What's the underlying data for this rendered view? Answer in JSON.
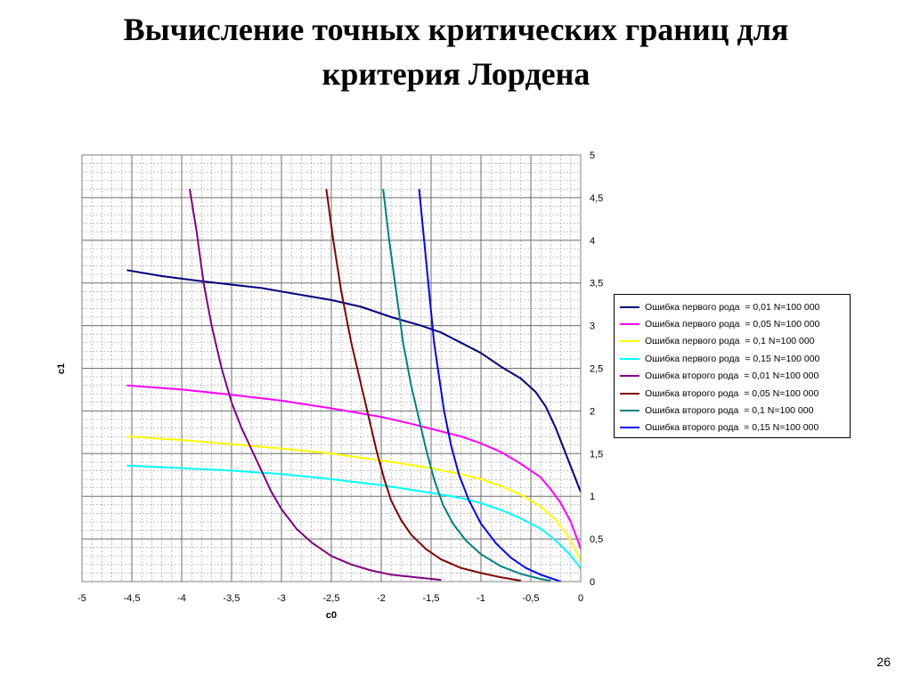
{
  "slide": {
    "title_line1": "Вычисление точных критических границ для",
    "title_line2": "критерия Лордена",
    "page_number": "26"
  },
  "chart_data": {
    "type": "line",
    "xlabel": "c0",
    "ylabel": "c1",
    "xlim": [
      -5,
      0
    ],
    "ylim": [
      0,
      5
    ],
    "x_ticks": [
      "-5",
      "-4,5",
      "-4",
      "-3,5",
      "-3",
      "-2,5",
      "-2",
      "-1,5",
      "-1",
      "-0,5",
      "0"
    ],
    "y_ticks": [
      "0",
      "0,5",
      "1",
      "1,5",
      "2",
      "2,5",
      "3",
      "3,5",
      "4",
      "4,5",
      "5"
    ],
    "grid": true,
    "minor_grid": true,
    "legend_position": "right",
    "series": [
      {
        "name": "Ошибка первого рода  = 0,01 N=100 000",
        "color": "#000080",
        "points": [
          [
            -4.55,
            3.65
          ],
          [
            -4.2,
            3.58
          ],
          [
            -3.8,
            3.52
          ],
          [
            -3.5,
            3.48
          ],
          [
            -3.2,
            3.44
          ],
          [
            -3.0,
            3.4
          ],
          [
            -2.8,
            3.36
          ],
          [
            -2.5,
            3.3
          ],
          [
            -2.2,
            3.22
          ],
          [
            -1.9,
            3.1
          ],
          [
            -1.6,
            3.0
          ],
          [
            -1.4,
            2.92
          ],
          [
            -1.2,
            2.8
          ],
          [
            -1.0,
            2.68
          ],
          [
            -0.8,
            2.52
          ],
          [
            -0.6,
            2.38
          ],
          [
            -0.45,
            2.22
          ],
          [
            -0.35,
            2.05
          ],
          [
            -0.25,
            1.8
          ],
          [
            -0.15,
            1.5
          ],
          [
            -0.05,
            1.2
          ],
          [
            0.0,
            1.05
          ]
        ]
      },
      {
        "name": "Ошибка первого рода  = 0,05 N=100 000",
        "color": "#ff00ff",
        "points": [
          [
            -4.55,
            2.3
          ],
          [
            -4.0,
            2.25
          ],
          [
            -3.5,
            2.19
          ],
          [
            -3.0,
            2.12
          ],
          [
            -2.5,
            2.03
          ],
          [
            -2.0,
            1.93
          ],
          [
            -1.7,
            1.85
          ],
          [
            -1.5,
            1.79
          ],
          [
            -1.2,
            1.7
          ],
          [
            -1.0,
            1.62
          ],
          [
            -0.8,
            1.52
          ],
          [
            -0.6,
            1.38
          ],
          [
            -0.4,
            1.22
          ],
          [
            -0.3,
            1.08
          ],
          [
            -0.2,
            0.92
          ],
          [
            -0.1,
            0.7
          ],
          [
            -0.02,
            0.45
          ],
          [
            0.0,
            0.38
          ]
        ]
      },
      {
        "name": "Ошибка первого рода  = 0,1 N=100 000",
        "color": "#ffff00",
        "points": [
          [
            -4.55,
            1.7
          ],
          [
            -4.0,
            1.66
          ],
          [
            -3.5,
            1.61
          ],
          [
            -3.0,
            1.56
          ],
          [
            -2.5,
            1.5
          ],
          [
            -2.0,
            1.42
          ],
          [
            -1.5,
            1.33
          ],
          [
            -1.2,
            1.26
          ],
          [
            -1.0,
            1.2
          ],
          [
            -0.8,
            1.12
          ],
          [
            -0.6,
            1.02
          ],
          [
            -0.4,
            0.88
          ],
          [
            -0.25,
            0.72
          ],
          [
            -0.12,
            0.52
          ],
          [
            -0.03,
            0.32
          ],
          [
            0.0,
            0.25
          ]
        ]
      },
      {
        "name": "Ошибка первого рода  = 0,15 N=100 000",
        "color": "#00ffff",
        "points": [
          [
            -4.55,
            1.36
          ],
          [
            -4.0,
            1.33
          ],
          [
            -3.5,
            1.3
          ],
          [
            -3.0,
            1.26
          ],
          [
            -2.5,
            1.2
          ],
          [
            -2.0,
            1.13
          ],
          [
            -1.5,
            1.04
          ],
          [
            -1.2,
            0.98
          ],
          [
            -1.0,
            0.92
          ],
          [
            -0.8,
            0.84
          ],
          [
            -0.6,
            0.74
          ],
          [
            -0.4,
            0.62
          ],
          [
            -0.25,
            0.48
          ],
          [
            -0.12,
            0.33
          ],
          [
            -0.03,
            0.2
          ],
          [
            0.0,
            0.15
          ]
        ]
      },
      {
        "name": "Ошибка второго рода  = 0,01 N=100 000",
        "color": "#800080",
        "points": [
          [
            -3.92,
            4.6
          ],
          [
            -3.85,
            4.1
          ],
          [
            -3.78,
            3.5
          ],
          [
            -3.7,
            3.0
          ],
          [
            -3.6,
            2.5
          ],
          [
            -3.5,
            2.1
          ],
          [
            -3.4,
            1.8
          ],
          [
            -3.3,
            1.55
          ],
          [
            -3.2,
            1.3
          ],
          [
            -3.1,
            1.05
          ],
          [
            -3.0,
            0.85
          ],
          [
            -2.85,
            0.62
          ],
          [
            -2.7,
            0.46
          ],
          [
            -2.5,
            0.3
          ],
          [
            -2.3,
            0.2
          ],
          [
            -2.1,
            0.13
          ],
          [
            -1.9,
            0.08
          ],
          [
            -1.65,
            0.05
          ],
          [
            -1.4,
            0.02
          ]
        ]
      },
      {
        "name": "Ошибка второго рода  = 0,05 N=100 000",
        "color": "#800000",
        "points": [
          [
            -2.55,
            4.6
          ],
          [
            -2.48,
            4.0
          ],
          [
            -2.4,
            3.4
          ],
          [
            -2.3,
            2.8
          ],
          [
            -2.2,
            2.3
          ],
          [
            -2.12,
            1.9
          ],
          [
            -2.05,
            1.55
          ],
          [
            -1.97,
            1.2
          ],
          [
            -1.9,
            0.95
          ],
          [
            -1.8,
            0.72
          ],
          [
            -1.7,
            0.55
          ],
          [
            -1.55,
            0.38
          ],
          [
            -1.4,
            0.26
          ],
          [
            -1.2,
            0.16
          ],
          [
            -1.0,
            0.1
          ],
          [
            -0.8,
            0.05
          ],
          [
            -0.6,
            0.01
          ]
        ]
      },
      {
        "name": "Ошибка второго рода  = 0,1 N=100 000",
        "color": "#008080",
        "points": [
          [
            -1.98,
            4.6
          ],
          [
            -1.92,
            4.0
          ],
          [
            -1.85,
            3.4
          ],
          [
            -1.78,
            2.8
          ],
          [
            -1.7,
            2.3
          ],
          [
            -1.62,
            1.9
          ],
          [
            -1.55,
            1.55
          ],
          [
            -1.47,
            1.2
          ],
          [
            -1.38,
            0.9
          ],
          [
            -1.28,
            0.68
          ],
          [
            -1.15,
            0.48
          ],
          [
            -1.0,
            0.32
          ],
          [
            -0.8,
            0.18
          ],
          [
            -0.6,
            0.09
          ],
          [
            -0.4,
            0.03
          ],
          [
            -0.3,
            0.01
          ]
        ]
      },
      {
        "name": "Ошибка второго рода  = 0,15 N=100 000",
        "color": "#0000ff",
        "points": [
          [
            -1.62,
            4.6
          ],
          [
            -1.57,
            4.0
          ],
          [
            -1.52,
            3.4
          ],
          [
            -1.47,
            2.8
          ],
          [
            -1.42,
            2.4
          ],
          [
            -1.37,
            2.0
          ],
          [
            -1.3,
            1.6
          ],
          [
            -1.22,
            1.25
          ],
          [
            -1.12,
            0.95
          ],
          [
            -1.0,
            0.68
          ],
          [
            -0.85,
            0.45
          ],
          [
            -0.7,
            0.28
          ],
          [
            -0.55,
            0.16
          ],
          [
            -0.4,
            0.08
          ],
          [
            -0.25,
            0.02
          ],
          [
            -0.2,
            0.0
          ]
        ]
      }
    ]
  }
}
